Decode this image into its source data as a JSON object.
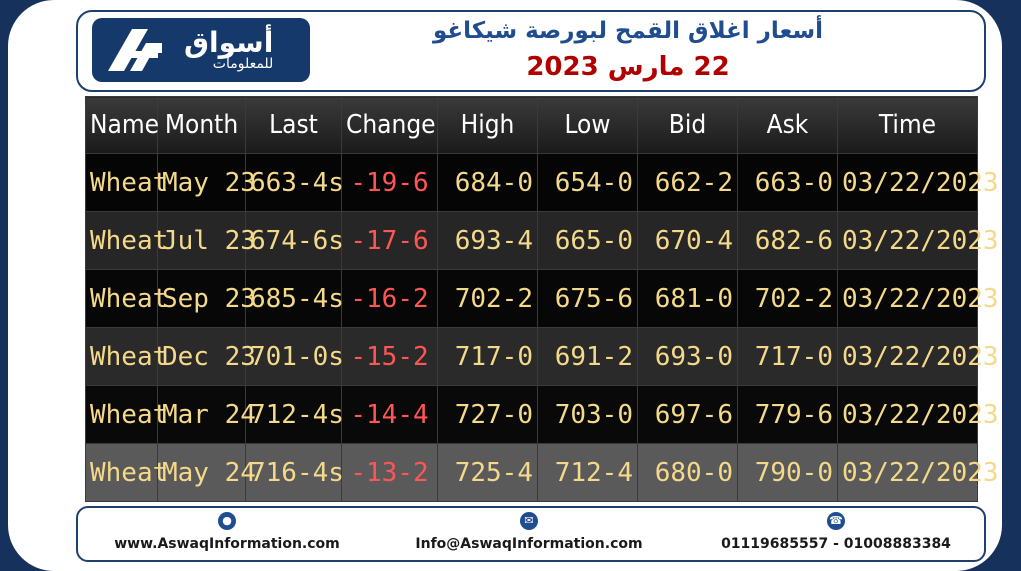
{
  "logo": {
    "line1": "أسواق",
    "line2": "للمعلومات"
  },
  "header": {
    "title": "أسعار اغلاق القمح لبورصة شيكاغو",
    "date": "22 مارس 2023"
  },
  "table": {
    "columns": [
      "Name",
      "Month",
      "Last",
      "Change",
      "High",
      "Low",
      "Bid",
      "Ask",
      "Time"
    ],
    "rows": [
      [
        "Wheat",
        "May 23",
        "663-4s",
        "-19-6",
        "684-0",
        "654-0",
        "662-2",
        "663-0",
        "03/22/2023"
      ],
      [
        "Wheat",
        "Jul 23",
        "674-6s",
        "-17-6",
        "693-4",
        "665-0",
        "670-4",
        "682-6",
        "03/22/2023"
      ],
      [
        "Wheat",
        "Sep 23",
        "685-4s",
        "-16-2",
        "702-2",
        "675-6",
        "681-0",
        "702-2",
        "03/22/2023"
      ],
      [
        "Wheat",
        "Dec 23",
        "701-0s",
        "-15-2",
        "717-0",
        "691-2",
        "693-0",
        "717-0",
        "03/22/2023"
      ],
      [
        "Wheat",
        "Mar 24",
        "712-4s",
        "-14-4",
        "727-0",
        "703-0",
        "697-6",
        "779-6",
        "03/22/2023"
      ],
      [
        "Wheat",
        "May 24",
        "716-4s",
        "-13-2",
        "725-4",
        "712-4",
        "680-0",
        "790-0",
        "03/22/2023"
      ]
    ]
  },
  "footer": {
    "website": "www.AswaqInformation.com",
    "email": "Info@AswaqInformation.com",
    "phone": "01119685557 - 01008883384"
  },
  "icons": {
    "website": "globe-icon",
    "email": "envelope-icon",
    "phone": "phone-icon"
  },
  "colors": {
    "brand": "#15396a",
    "title": "#1f4d8f",
    "date": "#b00000",
    "value": "#f5d98a",
    "negative": "#ff5555"
  }
}
